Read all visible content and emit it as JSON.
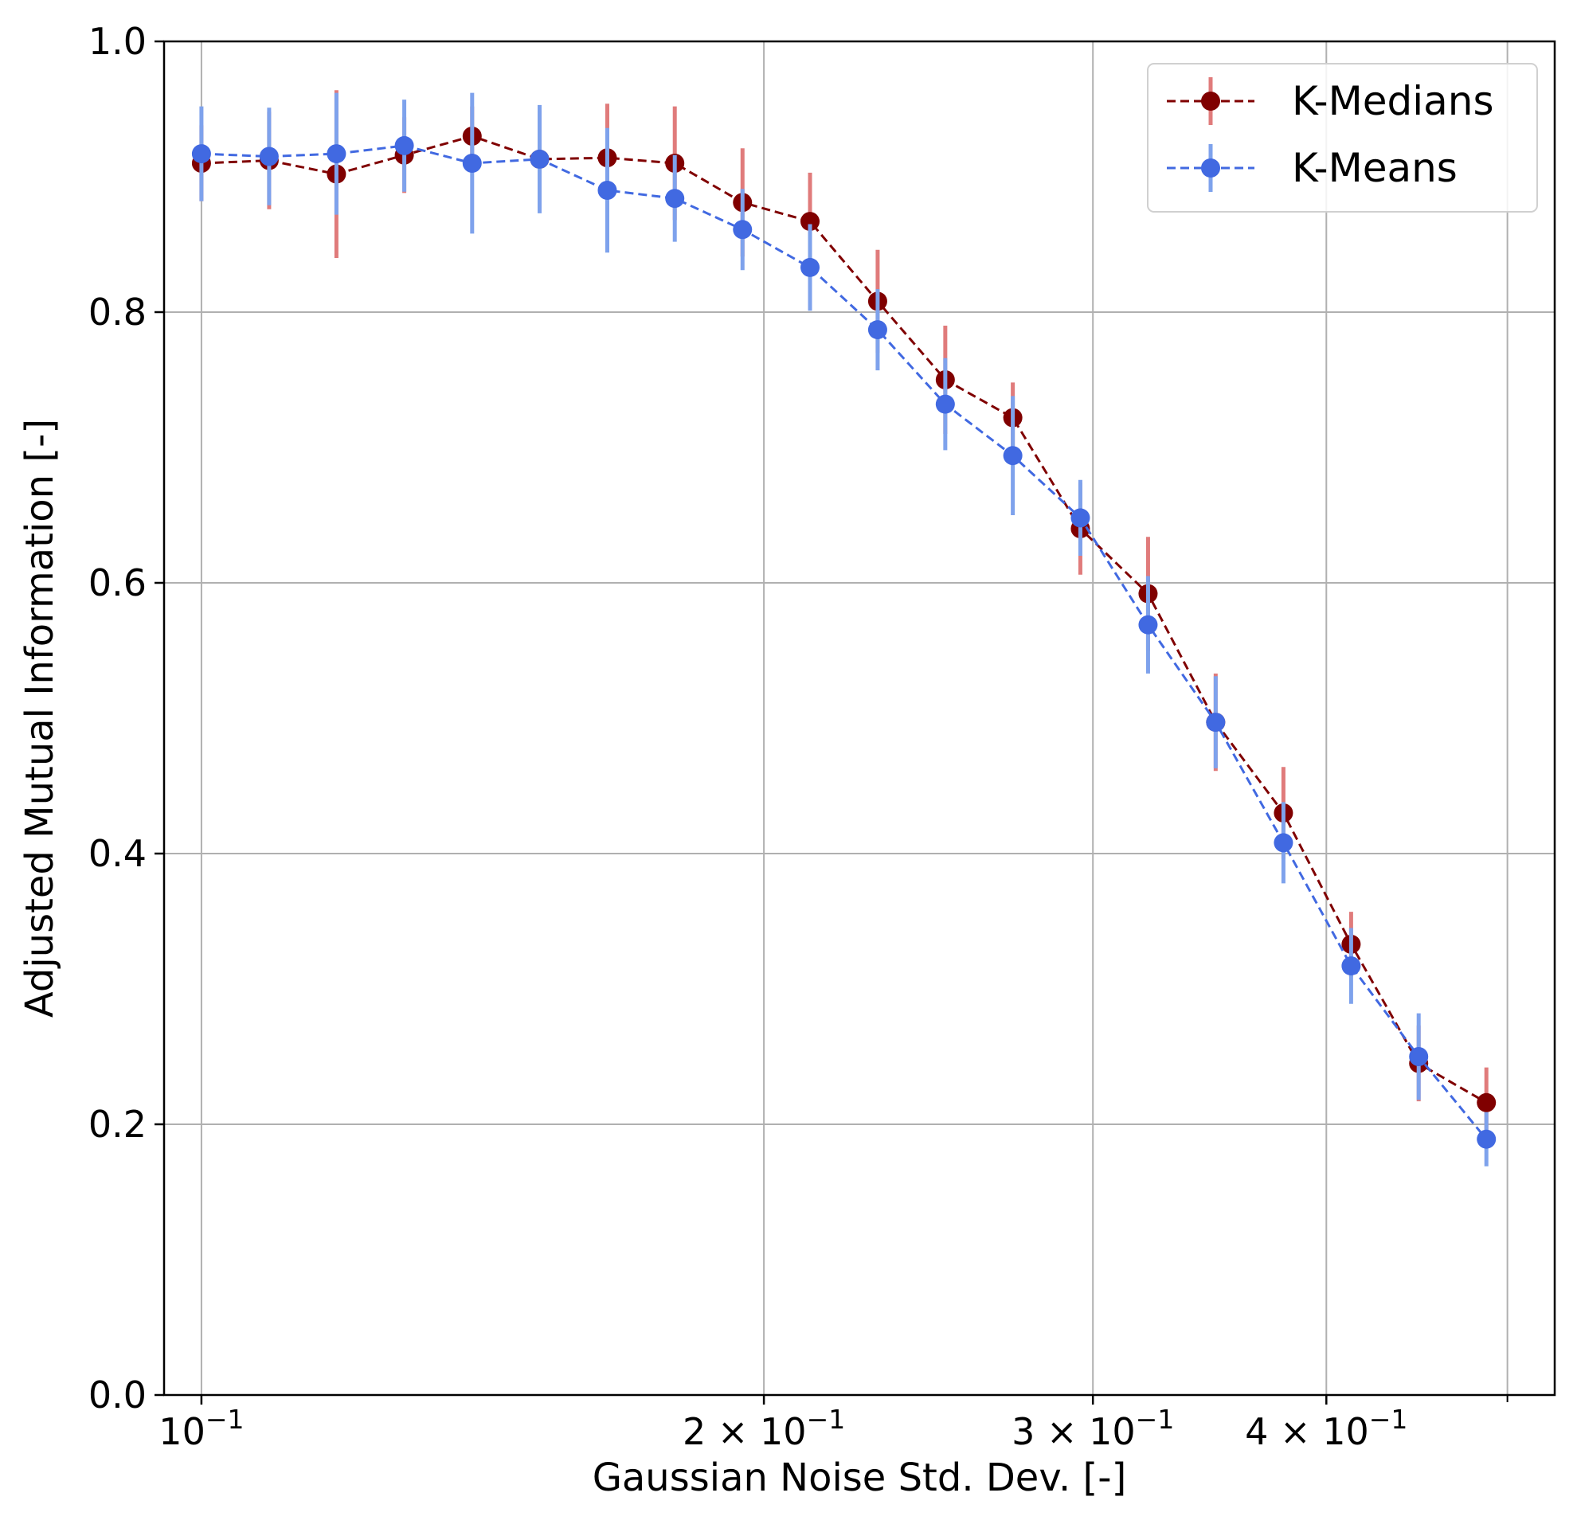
{
  "chart_data": {
    "type": "line",
    "title": "",
    "xlabel": "Gaussian Noise Std. Dev. [-]",
    "ylabel": "Adjusted Mutual Information [-]",
    "xscale": "log",
    "xlim": [
      0.0955,
      0.53
    ],
    "ylim": [
      0.0,
      1.0
    ],
    "grid": true,
    "legend_position": "top-right",
    "y_ticks": [
      {
        "value": 0.0,
        "label": "0.0"
      },
      {
        "value": 0.2,
        "label": "0.2"
      },
      {
        "value": 0.4,
        "label": "0.4"
      },
      {
        "value": 0.6,
        "label": "0.6"
      },
      {
        "value": 0.8,
        "label": "0.8"
      },
      {
        "value": 1.0,
        "label": "1.0"
      }
    ],
    "x_ticks": [
      {
        "value": 0.1,
        "mantissa": "",
        "base": "10",
        "exponent": "−1"
      },
      {
        "value": 0.2,
        "mantissa": "2 × ",
        "base": "10",
        "exponent": "−1"
      },
      {
        "value": 0.3,
        "mantissa": "3 × ",
        "base": "10",
        "exponent": "−1"
      },
      {
        "value": 0.4,
        "mantissa": "4 × ",
        "base": "10",
        "exponent": "−1"
      }
    ],
    "x": [
      0.1,
      0.1087,
      0.1181,
      0.1284,
      0.1396,
      0.1517,
      0.1649,
      0.1792,
      0.1948,
      0.2117,
      0.2301,
      0.2501,
      0.2718,
      0.2954,
      0.3211,
      0.349,
      0.3794,
      0.4124,
      0.4482,
      0.4872
    ],
    "series": [
      {
        "name": "K-Medians",
        "color": "#800000",
        "error_color": "#e07b7b",
        "values": [
          0.91,
          0.912,
          0.902,
          0.916,
          0.93,
          0.913,
          0.914,
          0.91,
          0.881,
          0.867,
          0.808,
          0.75,
          0.722,
          0.64,
          0.592,
          0.497,
          0.43,
          0.333,
          0.245,
          0.216
        ],
        "errors": [
          0.028,
          0.036,
          0.062,
          0.028,
          0.022,
          0.036,
          0.04,
          0.042,
          0.04,
          0.036,
          0.038,
          0.04,
          0.026,
          0.034,
          0.042,
          0.036,
          0.034,
          0.024,
          0.028,
          0.026
        ]
      },
      {
        "name": "K-Means",
        "color": "#4169e1",
        "error_color": "#7ea2ec",
        "values": [
          0.917,
          0.915,
          0.917,
          0.923,
          0.91,
          0.913,
          0.89,
          0.884,
          0.861,
          0.833,
          0.787,
          0.732,
          0.694,
          0.648,
          0.569,
          0.497,
          0.408,
          0.317,
          0.25,
          0.189
        ],
        "errors": [
          0.035,
          0.036,
          0.045,
          0.034,
          0.052,
          0.04,
          0.046,
          0.032,
          0.03,
          0.032,
          0.03,
          0.034,
          0.044,
          0.028,
          0.036,
          0.034,
          0.03,
          0.028,
          0.032,
          0.02
        ]
      }
    ]
  }
}
